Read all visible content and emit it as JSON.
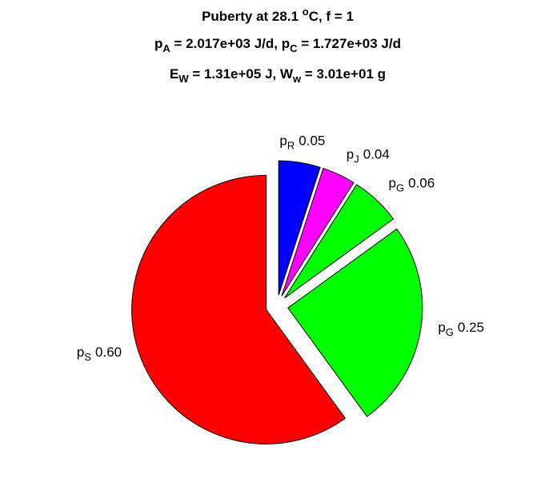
{
  "chart_data": {
    "type": "pie",
    "title": [
      [
        {
          "text": "Puberty at 28.1 "
        },
        {
          "sup": "o"
        },
        {
          "text": "C, f = 1"
        }
      ],
      [
        {
          "text": "p"
        },
        {
          "sub": "A"
        },
        {
          "text": " = 2.017e+03 J/d,  p"
        },
        {
          "sub": "C"
        },
        {
          "text": " = 1.727e+03 J/d"
        }
      ],
      [
        {
          "text": "E"
        },
        {
          "sub": "W"
        },
        {
          "text": " = 1.31e+05 J, W"
        },
        {
          "sub": "w"
        },
        {
          "text": " = 3.01e+01 g"
        }
      ]
    ],
    "categories": [
      [
        {
          "text": "p"
        },
        {
          "sub": "R"
        }
      ],
      [
        {
          "text": "p"
        },
        {
          "sub": "J"
        }
      ],
      [
        {
          "text": "p"
        },
        {
          "sub": "G"
        }
      ],
      [
        {
          "text": "p"
        },
        {
          "sub": "G"
        }
      ],
      [
        {
          "text": "p"
        },
        {
          "sub": "S"
        }
      ]
    ],
    "values": [
      0.05,
      0.04,
      0.06,
      0.25,
      0.6
    ],
    "value_labels": [
      "0.05",
      "0.04",
      "0.06",
      "0.25",
      "0.60"
    ],
    "colors": [
      "#0000ff",
      "#ff00ff",
      "#00ff00",
      "#00ff00",
      "#ff0000"
    ]
  }
}
